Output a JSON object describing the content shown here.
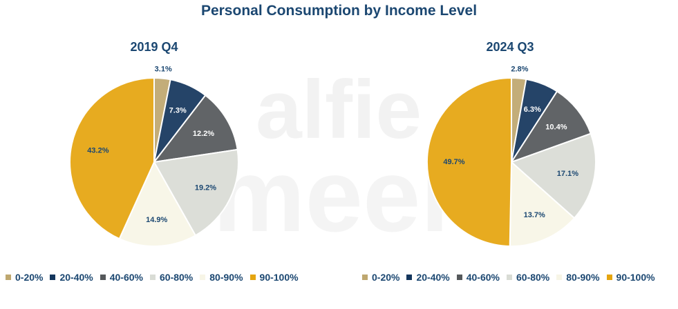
{
  "title": "Personal Consumption by Income Level",
  "colors": {
    "title": "#1b4771",
    "0-20%": "#bea76f",
    "20-40%": "#14365d",
    "40-60%": "#55585b",
    "60-80%": "#d9dcd5",
    "80-90%": "#f7f5e6",
    "90-100%": "#e5a50f"
  },
  "legend": [
    "0-20%",
    "20-40%",
    "40-60%",
    "60-80%",
    "80-90%",
    "90-100%"
  ],
  "chart_data": [
    {
      "type": "pie",
      "title": "2019 Q4",
      "categories": [
        "0-20%",
        "20-40%",
        "40-60%",
        "60-80%",
        "80-90%",
        "90-100%"
      ],
      "values": [
        3.1,
        7.3,
        12.2,
        19.2,
        14.9,
        43.2
      ],
      "labels": [
        "3.1%",
        "7.3%",
        "12.2%",
        "19.2%",
        "14.9%",
        "43.2%"
      ],
      "legend_position": "bottom"
    },
    {
      "type": "pie",
      "title": "2024 Q3",
      "categories": [
        "0-20%",
        "20-40%",
        "40-60%",
        "60-80%",
        "80-90%",
        "90-100%"
      ],
      "values": [
        2.8,
        6.3,
        10.4,
        17.1,
        13.7,
        49.7
      ],
      "labels": [
        "2.8%",
        "6.3%",
        "10.4%",
        "17.1%",
        "13.7%",
        "49.7%"
      ],
      "legend_position": "bottom"
    }
  ]
}
